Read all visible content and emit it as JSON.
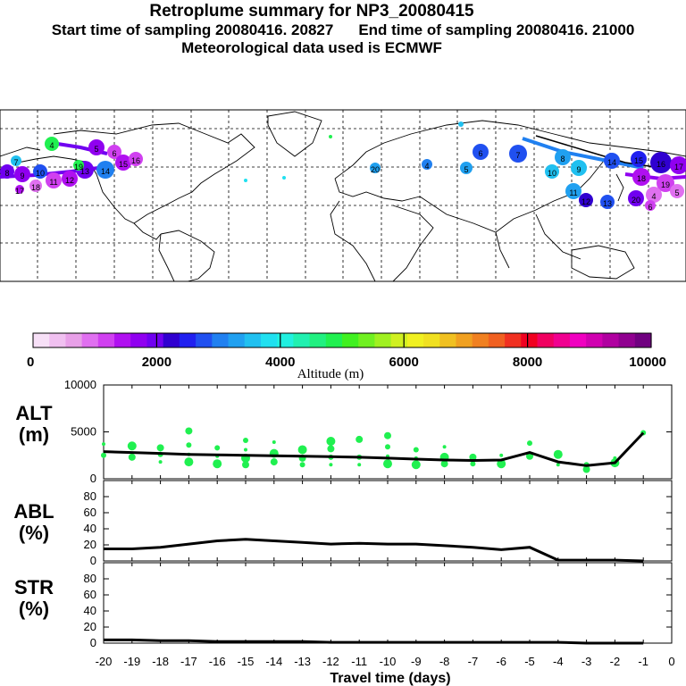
{
  "header": {
    "title": "Retroplume summary for NP3_20080415",
    "start_label": "Start time of sampling 20080416. 20827",
    "end_label": "End time of sampling 20080416. 21000",
    "met_label": "Meteorological data used is ECMWF"
  },
  "map": {
    "description_labels": [
      "4",
      "5",
      "6",
      "7",
      "8",
      "9",
      "10",
      "11",
      "12",
      "13",
      "14",
      "15",
      "16",
      "17",
      "18",
      "19",
      "20"
    ]
  },
  "colorbar": {
    "ticks": [
      "0",
      "2000",
      "4000",
      "6000",
      "8000",
      "10000"
    ],
    "title": "Altitude (m)",
    "colors": [
      "#f7e0f7",
      "#f0c0f0",
      "#e8a0e8",
      "#e070f0",
      "#d040f0",
      "#b010f0",
      "#9000f0",
      "#7000f0",
      "#3000d0",
      "#2020f0",
      "#2050f0",
      "#2080f0",
      "#20a0f0",
      "#20c0f0",
      "#20e0f0",
      "#20f0e0",
      "#20f0b0",
      "#20f080",
      "#20f050",
      "#40f020",
      "#70f020",
      "#a0f020",
      "#d0f020",
      "#f0f020",
      "#f0e020",
      "#f0c020",
      "#f0a020",
      "#f08020",
      "#f06020",
      "#f03020",
      "#f00020",
      "#f00060",
      "#f00090",
      "#f000c0",
      "#d000b0",
      "#b000a0",
      "#900090",
      "#700080"
    ]
  },
  "panels": {
    "alt_label": "ALT\n(m)",
    "abl_label": "ABL\n(%)",
    "str_label": "STR\n(%)"
  },
  "xaxis": {
    "title": "Travel time (days)",
    "ticks": [
      "-20",
      "-19",
      "-18",
      "-17",
      "-16",
      "-15",
      "-14",
      "-13",
      "-12",
      "-11",
      "-10",
      "-9",
      "-8",
      "-7",
      "-6",
      "-5",
      "-4",
      "-3",
      "-2",
      "-1",
      "0"
    ]
  },
  "chart_data": [
    {
      "type": "line",
      "title": "ALT",
      "ylabel": "ALT (m)",
      "xlabel": "Travel time (days)",
      "xlim": [
        -20,
        0
      ],
      "ylim": [
        0,
        10000
      ],
      "yticks": [
        "0",
        "5000",
        "10000"
      ],
      "x": [
        -20,
        -19,
        -18,
        -17,
        -16,
        -15,
        -14,
        -13,
        -12,
        -11,
        -10,
        -9,
        -8,
        -7,
        -6,
        -5,
        -4,
        -3,
        -2,
        -1
      ],
      "values": [
        2900,
        2800,
        2700,
        2600,
        2550,
        2500,
        2450,
        2400,
        2350,
        2300,
        2200,
        2100,
        2000,
        1950,
        2000,
        2800,
        1800,
        1400,
        1700,
        4900
      ],
      "points": [
        [
          -20,
          3700
        ],
        [
          -20,
          2500
        ],
        [
          -19,
          2300
        ],
        [
          -19,
          3500
        ],
        [
          -18,
          1800
        ],
        [
          -18,
          2600
        ],
        [
          -18,
          3300
        ],
        [
          -17,
          1800
        ],
        [
          -17,
          2600
        ],
        [
          -17,
          3600
        ],
        [
          -17,
          5100
        ],
        [
          -16,
          1600
        ],
        [
          -16,
          2400
        ],
        [
          -16,
          3300
        ],
        [
          -15,
          1500
        ],
        [
          -15,
          2200
        ],
        [
          -15,
          3100
        ],
        [
          -15,
          4100
        ],
        [
          -14,
          1800
        ],
        [
          -14,
          2700
        ],
        [
          -14,
          3900
        ],
        [
          -13,
          1500
        ],
        [
          -13,
          2200
        ],
        [
          -13,
          3100
        ],
        [
          -12,
          1500
        ],
        [
          -12,
          2300
        ],
        [
          -12,
          3200
        ],
        [
          -12,
          4000
        ],
        [
          -11,
          1500
        ],
        [
          -11,
          2300
        ],
        [
          -11,
          4200
        ],
        [
          -10,
          1600
        ],
        [
          -10,
          2400
        ],
        [
          -10,
          3400
        ],
        [
          -10,
          4600
        ],
        [
          -9,
          1500
        ],
        [
          -9,
          2200
        ],
        [
          -9,
          3100
        ],
        [
          -8,
          1600
        ],
        [
          -8,
          2300
        ],
        [
          -8,
          3400
        ],
        [
          -7,
          1600
        ],
        [
          -7,
          2300
        ],
        [
          -6,
          1600
        ],
        [
          -6,
          2500
        ],
        [
          -5,
          3800
        ],
        [
          -5,
          2400
        ],
        [
          -4,
          2600
        ],
        [
          -4,
          1500
        ],
        [
          -3,
          1500
        ],
        [
          -3,
          1000
        ],
        [
          -2,
          1700
        ],
        [
          -2,
          2200
        ],
        [
          -1,
          4900
        ]
      ]
    },
    {
      "type": "line",
      "title": "ABL",
      "ylabel": "ABL (%)",
      "xlim": [
        -20,
        0
      ],
      "ylim": [
        0,
        100
      ],
      "yticks": [
        "0",
        "20",
        "40",
        "60",
        "80"
      ],
      "x": [
        -20,
        -19,
        -18,
        -17,
        -16,
        -15,
        -14,
        -13,
        -12,
        -11,
        -10,
        -9,
        -8,
        -7,
        -6,
        -5,
        -4,
        -3,
        -2,
        -1
      ],
      "values": [
        15,
        15,
        17,
        21,
        25,
        27,
        25,
        23,
        21,
        22,
        21,
        21,
        19,
        17,
        14,
        17,
        1,
        1,
        1,
        0
      ]
    },
    {
      "type": "line",
      "title": "STR",
      "ylabel": "STR (%)",
      "xlim": [
        -20,
        0
      ],
      "ylim": [
        0,
        100
      ],
      "yticks": [
        "0",
        "20",
        "40",
        "60",
        "80"
      ],
      "x": [
        -20,
        -19,
        -18,
        -17,
        -16,
        -15,
        -14,
        -13,
        -12,
        -11,
        -10,
        -9,
        -8,
        -7,
        -6,
        -5,
        -4,
        -3,
        -2,
        -1
      ],
      "values": [
        4,
        4,
        3,
        3,
        2,
        2,
        2,
        2,
        1,
        1,
        1,
        1,
        1,
        1,
        1,
        1,
        1,
        0,
        0,
        0
      ]
    }
  ]
}
